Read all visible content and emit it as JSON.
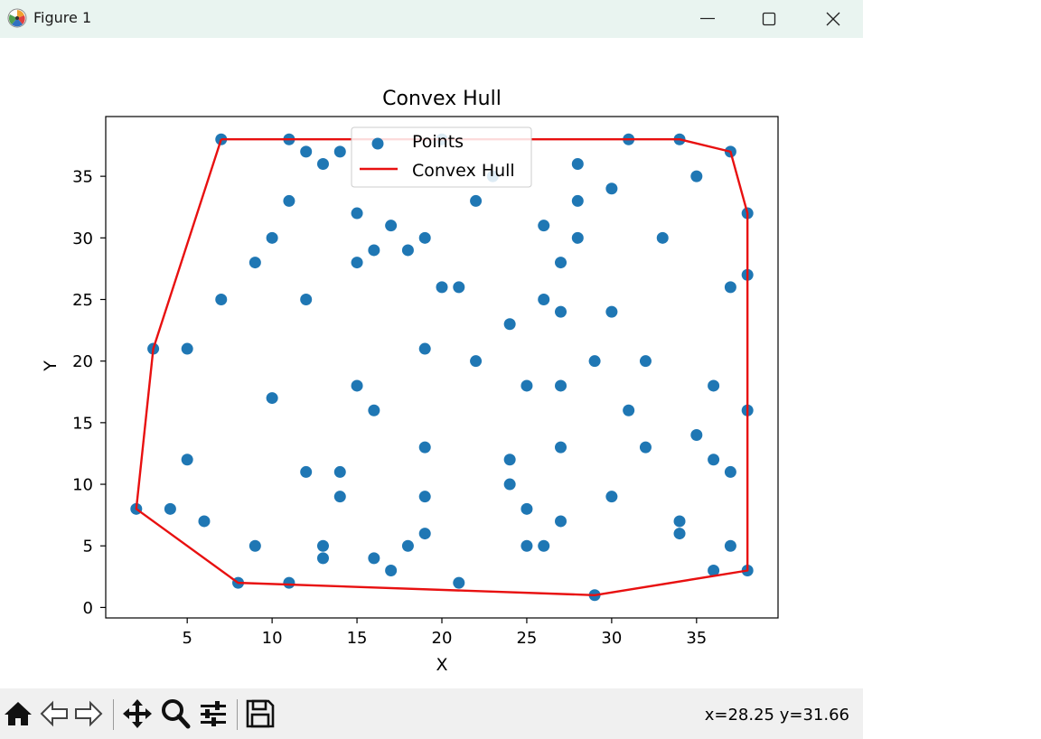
{
  "window": {
    "title": "Figure 1",
    "controls": {
      "minimize": "minimize-icon",
      "maximize": "maximize-icon",
      "close": "close-icon"
    }
  },
  "toolbar": {
    "buttons": [
      "home-icon",
      "back-arrow-icon",
      "forward-arrow-icon",
      "pan-move-icon",
      "zoom-magnifier-icon",
      "configure-subplots-icon",
      "save-floppy-icon"
    ],
    "coordinates": "x=28.25 y=31.66"
  },
  "colors": {
    "points": "#1f77b4",
    "hull": "#e81010",
    "titlebar": "#e9f4f0",
    "toolbar": "#f0f0f0"
  },
  "chart_data": {
    "type": "scatter",
    "title": "Convex Hull",
    "xlabel": "X",
    "ylabel": "Y",
    "xlim": [
      0.2,
      39.8
    ],
    "ylim": [
      -0.85,
      39.85
    ],
    "xticks": [
      5,
      10,
      15,
      20,
      25,
      30,
      35
    ],
    "yticks": [
      0,
      5,
      10,
      15,
      20,
      25,
      30,
      35
    ],
    "legend": {
      "placement": "upper-center",
      "entries": [
        "Points",
        "Convex Hull"
      ]
    },
    "grid": false,
    "series": [
      {
        "name": "Points",
        "kind": "scatter",
        "points": [
          [
            7,
            38
          ],
          [
            11,
            38
          ],
          [
            12,
            37
          ],
          [
            13,
            36
          ],
          [
            14,
            37
          ],
          [
            20,
            38
          ],
          [
            31,
            38
          ],
          [
            34,
            38
          ],
          [
            37,
            37
          ],
          [
            35,
            35
          ],
          [
            23,
            35
          ],
          [
            28,
            36
          ],
          [
            11,
            33
          ],
          [
            15,
            32
          ],
          [
            22,
            33
          ],
          [
            28,
            33
          ],
          [
            30,
            34
          ],
          [
            38,
            32
          ],
          [
            10,
            30
          ],
          [
            17,
            31
          ],
          [
            19,
            30
          ],
          [
            16,
            29
          ],
          [
            18,
            29
          ],
          [
            26,
            31
          ],
          [
            28,
            30
          ],
          [
            33,
            30
          ],
          [
            9,
            28
          ],
          [
            15,
            28
          ],
          [
            27,
            28
          ],
          [
            38,
            27
          ],
          [
            37,
            26
          ],
          [
            20,
            26
          ],
          [
            21,
            26
          ],
          [
            7,
            25
          ],
          [
            12,
            25
          ],
          [
            26,
            25
          ],
          [
            27,
            24
          ],
          [
            30,
            24
          ],
          [
            24,
            23
          ],
          [
            3,
            21
          ],
          [
            5,
            21
          ],
          [
            19,
            21
          ],
          [
            22,
            20
          ],
          [
            29,
            20
          ],
          [
            32,
            20
          ],
          [
            15,
            18
          ],
          [
            25,
            18
          ],
          [
            27,
            18
          ],
          [
            36,
            18
          ],
          [
            10,
            17
          ],
          [
            16,
            16
          ],
          [
            31,
            16
          ],
          [
            38,
            16
          ],
          [
            35,
            14
          ],
          [
            19,
            13
          ],
          [
            27,
            13
          ],
          [
            32,
            13
          ],
          [
            5,
            12
          ],
          [
            24,
            12
          ],
          [
            36,
            12
          ],
          [
            12,
            11
          ],
          [
            14,
            11
          ],
          [
            37,
            11
          ],
          [
            24,
            10
          ],
          [
            14,
            9
          ],
          [
            19,
            9
          ],
          [
            30,
            9
          ],
          [
            2,
            8
          ],
          [
            4,
            8
          ],
          [
            25,
            8
          ],
          [
            6,
            7
          ],
          [
            27,
            7
          ],
          [
            34,
            7
          ],
          [
            19,
            6
          ],
          [
            34,
            6
          ],
          [
            9,
            5
          ],
          [
            13,
            5
          ],
          [
            18,
            5
          ],
          [
            25,
            5
          ],
          [
            26,
            5
          ],
          [
            37,
            5
          ],
          [
            13,
            4
          ],
          [
            16,
            4
          ],
          [
            17,
            3
          ],
          [
            36,
            3
          ],
          [
            38,
            3
          ],
          [
            8,
            2
          ],
          [
            11,
            2
          ],
          [
            21,
            2
          ],
          [
            29,
            1
          ]
        ]
      },
      {
        "name": "Convex Hull",
        "kind": "line",
        "points": [
          [
            7,
            38
          ],
          [
            34,
            38
          ],
          [
            37,
            37
          ],
          [
            38,
            32
          ],
          [
            38,
            3
          ],
          [
            29,
            1
          ],
          [
            8,
            2
          ],
          [
            2,
            8
          ],
          [
            3,
            21
          ],
          [
            7,
            38
          ]
        ]
      }
    ]
  }
}
